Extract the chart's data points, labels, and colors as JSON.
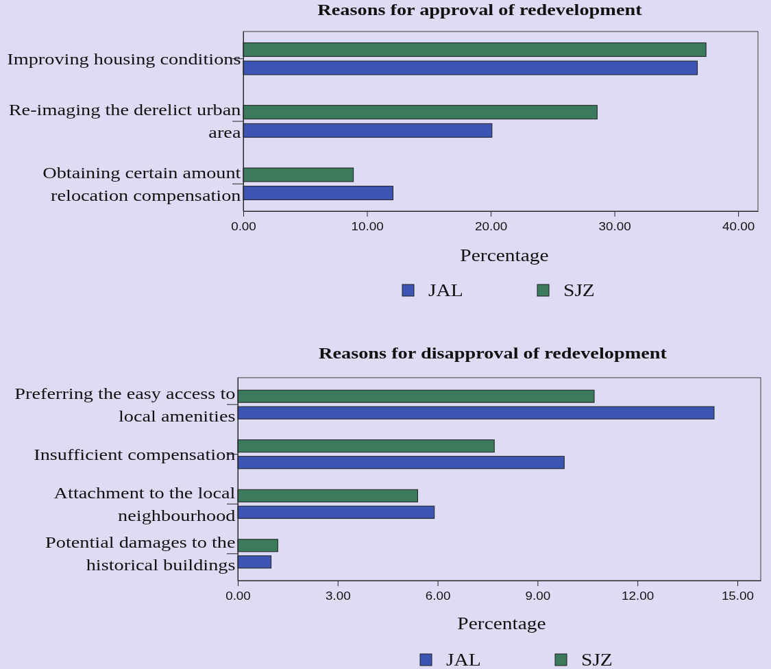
{
  "chart_data": [
    {
      "type": "bar",
      "orientation": "horizontal",
      "title": "Reasons for approval of redevelopment",
      "xlabel": "Percentage",
      "categories": [
        "Improving housing conditions",
        "Re-imaging the derelict urban area",
        "Obtaining certain amount relocation compensation"
      ],
      "series": [
        {
          "name": "JAL",
          "color": "#3c55b2",
          "values": [
            36.7,
            20.1,
            12.1
          ]
        },
        {
          "name": "SJZ",
          "color": "#3b7a5c",
          "values": [
            37.4,
            28.6,
            8.9
          ]
        }
      ],
      "xlim": [
        0,
        41.6
      ],
      "xticks": [
        {
          "value": 0,
          "label": "0.00"
        },
        {
          "value": 10,
          "label": "10.00"
        },
        {
          "value": 20,
          "label": "20.00"
        },
        {
          "value": 30,
          "label": "30.00"
        },
        {
          "value": 40,
          "label": "40.00"
        }
      ],
      "legend": "bottom"
    },
    {
      "type": "bar",
      "orientation": "horizontal",
      "title": "Reasons for disapproval of redevelopment",
      "xlabel": "Percentage",
      "categories": [
        "Preferring the easy access to local amenities",
        "Insufficient compensation",
        "Attachment to the local neighbourhood",
        "Potential damages to the historical buildings"
      ],
      "series": [
        {
          "name": "JAL",
          "color": "#3c55b2",
          "values": [
            14.3,
            9.8,
            5.9,
            1.0
          ]
        },
        {
          "name": "SJZ",
          "color": "#3b7a5c",
          "values": [
            10.7,
            7.7,
            5.4,
            1.2
          ]
        }
      ],
      "xlim": [
        0,
        15.7
      ],
      "xticks": [
        {
          "value": 0,
          "label": "0.00"
        },
        {
          "value": 3,
          "label": "3.00"
        },
        {
          "value": 6,
          "label": "6.00"
        },
        {
          "value": 9,
          "label": "9.00"
        },
        {
          "value": 12,
          "label": "12.00"
        },
        {
          "value": 15,
          "label": "15.00"
        }
      ],
      "legend": "bottom"
    }
  ]
}
